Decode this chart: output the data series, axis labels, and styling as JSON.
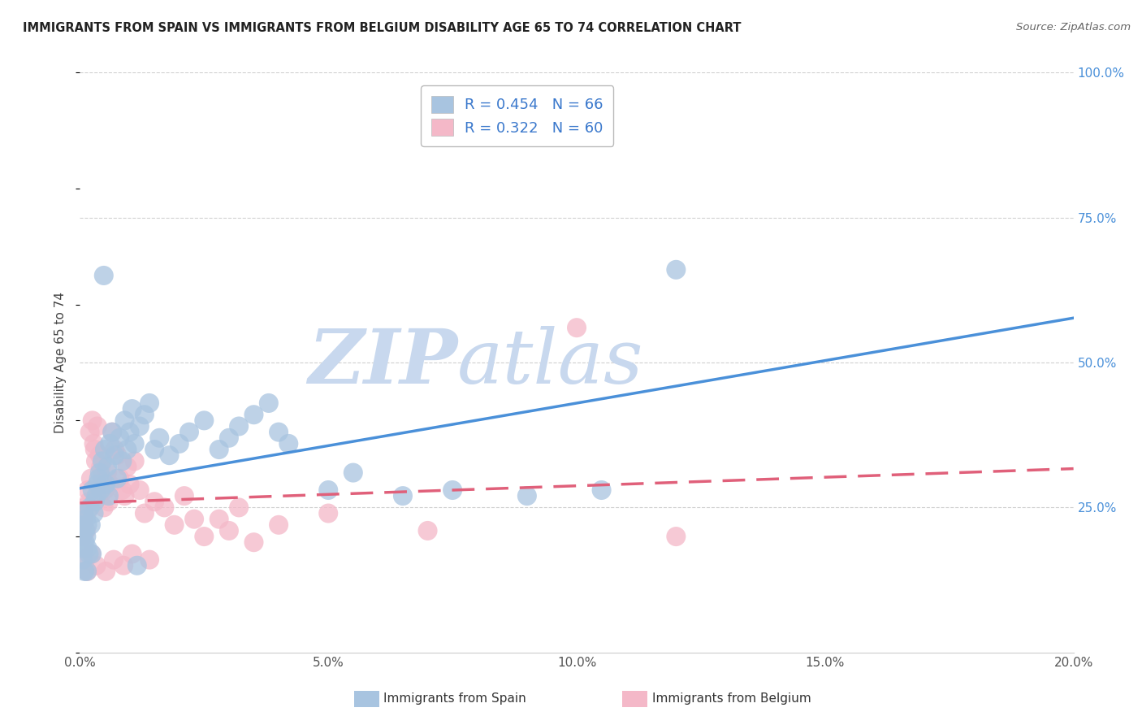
{
  "title": "IMMIGRANTS FROM SPAIN VS IMMIGRANTS FROM BELGIUM DISABILITY AGE 65 TO 74 CORRELATION CHART",
  "source": "Source: ZipAtlas.com",
  "ylabel": "Disability Age 65 to 74",
  "spain_R": 0.454,
  "spain_N": 66,
  "belgium_R": 0.322,
  "belgium_N": 60,
  "spain_color": "#a8c4e0",
  "spain_line_color": "#4a90d9",
  "belgium_color": "#f4b8c8",
  "belgium_line_color": "#e0607a",
  "background_color": "#ffffff",
  "grid_color": "#d0d0d0",
  "title_color": "#222222",
  "legend_label_spain": "Immigrants from Spain",
  "legend_label_belgium": "Immigrants from Belgium",
  "spain_scatter_x": [
    0.05,
    0.05,
    0.07,
    0.08,
    0.1,
    0.1,
    0.12,
    0.13,
    0.15,
    0.15,
    0.18,
    0.2,
    0.22,
    0.25,
    0.28,
    0.3,
    0.33,
    0.35,
    0.38,
    0.4,
    0.42,
    0.45,
    0.5,
    0.52,
    0.55,
    0.58,
    0.6,
    0.65,
    0.7,
    0.75,
    0.8,
    0.85,
    0.9,
    0.95,
    1.0,
    1.05,
    1.1,
    1.2,
    1.3,
    1.4,
    1.5,
    1.6,
    1.8,
    2.0,
    2.2,
    2.5,
    2.8,
    3.0,
    3.2,
    3.5,
    3.8,
    4.0,
    4.2,
    5.0,
    5.5,
    6.5,
    7.5,
    9.0,
    10.5,
    12.0,
    0.06,
    0.09,
    0.14,
    0.24,
    0.48,
    1.15
  ],
  "spain_scatter_y": [
    22,
    20,
    18,
    24,
    19,
    21,
    23,
    20,
    22,
    18,
    17,
    25,
    22,
    28,
    24,
    26,
    27,
    29,
    30,
    31,
    28,
    33,
    35,
    29,
    32,
    27,
    36,
    38,
    34,
    30,
    37,
    33,
    40,
    35,
    38,
    42,
    36,
    39,
    41,
    43,
    35,
    37,
    34,
    36,
    38,
    40,
    35,
    37,
    39,
    41,
    43,
    38,
    36,
    28,
    31,
    27,
    28,
    27,
    28,
    66,
    16,
    14,
    14,
    17,
    65,
    15
  ],
  "belgium_scatter_x": [
    0.05,
    0.06,
    0.08,
    0.1,
    0.12,
    0.14,
    0.16,
    0.18,
    0.2,
    0.22,
    0.25,
    0.28,
    0.3,
    0.32,
    0.35,
    0.38,
    0.4,
    0.42,
    0.45,
    0.48,
    0.5,
    0.55,
    0.58,
    0.6,
    0.65,
    0.7,
    0.75,
    0.8,
    0.85,
    0.9,
    0.95,
    1.0,
    1.1,
    1.2,
    1.3,
    1.5,
    1.7,
    1.9,
    2.1,
    2.3,
    2.5,
    2.8,
    3.0,
    3.2,
    3.5,
    4.0,
    5.0,
    7.0,
    10.0,
    12.0,
    0.07,
    0.11,
    0.15,
    0.23,
    0.33,
    0.52,
    0.68,
    0.88,
    1.05,
    1.4
  ],
  "belgium_scatter_y": [
    22,
    20,
    23,
    25,
    21,
    24,
    28,
    26,
    38,
    30,
    40,
    36,
    35,
    33,
    39,
    27,
    34,
    32,
    30,
    25,
    28,
    31,
    26,
    29,
    38,
    35,
    34,
    30,
    28,
    27,
    32,
    29,
    33,
    28,
    24,
    26,
    25,
    22,
    27,
    23,
    20,
    23,
    21,
    25,
    19,
    22,
    24,
    21,
    56,
    20,
    18,
    16,
    14,
    17,
    15,
    14,
    16,
    15,
    17,
    16
  ],
  "xlim": [
    0.0,
    20.0
  ],
  "ylim": [
    0.0,
    100.0
  ],
  "x_ticks": [
    0.0,
    5.0,
    10.0,
    15.0,
    20.0
  ],
  "y_ticks_right": [
    25.0,
    50.0,
    75.0,
    100.0
  ],
  "watermark_zip": "ZIP",
  "watermark_atlas": "atlas",
  "watermark_color": "#c8d8ee"
}
